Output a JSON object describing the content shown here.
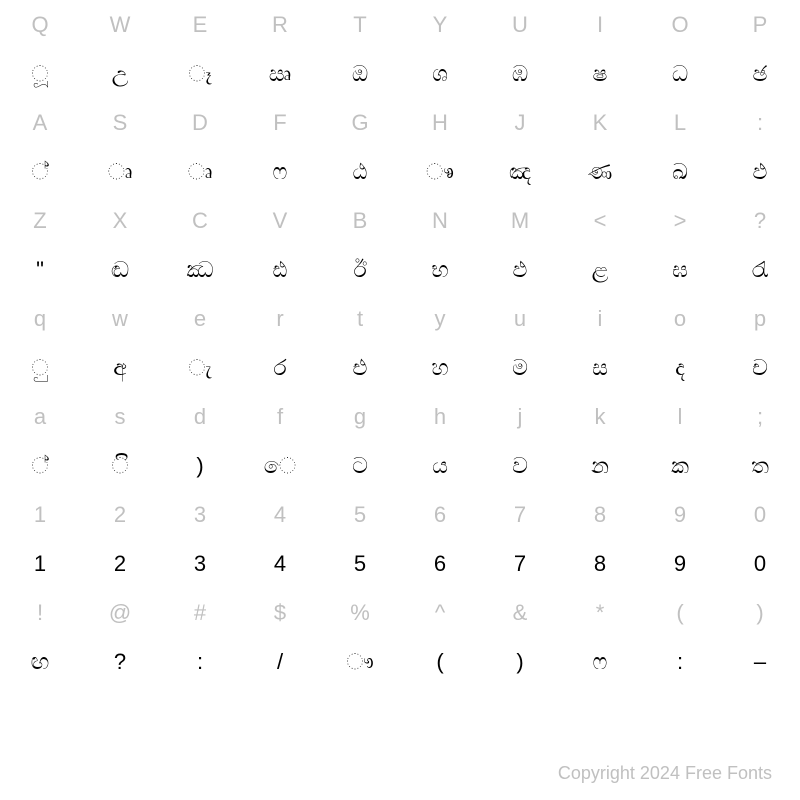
{
  "grid": {
    "columns": 10,
    "key_color": "#c0c0c0",
    "glyph_color": "#000000",
    "background_color": "#ffffff",
    "cell_fontsize": 22,
    "rows": [
      {
        "type": "key",
        "cells": [
          "Q",
          "W",
          "E",
          "R",
          "T",
          "Y",
          "U",
          "I",
          "O",
          "P"
        ]
      },
      {
        "type": "glyph",
        "cells": [
          "ූ",
          "උ",
          "ෑ",
          "ඍ",
          "ඔ",
          "ශ",
          "ඹ",
          "ෂ",
          "ධ",
          "ඡ"
        ]
      },
      {
        "type": "key",
        "cells": [
          "A",
          "S",
          "D",
          "F",
          "G",
          "H",
          "J",
          "K",
          "L",
          ":"
        ]
      },
      {
        "type": "glyph",
        "cells": [
          "්",
          "ෘ",
          "ෘ",
          "ෆ",
          "ඨ",
          "ෳ",
          "ඤ",
          "ණ",
          "ඛ",
          "ඵ"
        ]
      },
      {
        "type": "key",
        "cells": [
          "Z",
          "X",
          "C",
          "V",
          "B",
          "N",
          "M",
          "<",
          ">",
          "?"
        ]
      },
      {
        "type": "glyph",
        "cells": [
          "\"",
          "ඬ",
          "ඣ",
          "ඪ",
          "ඊ",
          "භ",
          "ඵ",
          "ළ",
          "ඝ",
          "රැ"
        ]
      },
      {
        "type": "key",
        "cells": [
          "q",
          "w",
          "e",
          "r",
          "t",
          "y",
          "u",
          "i",
          "o",
          "p"
        ]
      },
      {
        "type": "glyph",
        "cells": [
          "ු",
          "අ",
          "ැ",
          "ර",
          "එ",
          "හ",
          "ම",
          "ස",
          "ද",
          "ච"
        ]
      },
      {
        "type": "key",
        "cells": [
          "a",
          "s",
          "d",
          "f",
          "g",
          "h",
          "j",
          "k",
          "l",
          ";"
        ]
      },
      {
        "type": "glyph",
        "cells": [
          "්",
          "ි",
          ")",
          "ෙ",
          "ට",
          "ය",
          "ව",
          "න",
          "ක",
          "ත"
        ]
      },
      {
        "type": "key",
        "cells": [
          "1",
          "2",
          "3",
          "4",
          "5",
          "6",
          "7",
          "8",
          "9",
          "0"
        ]
      },
      {
        "type": "glyph",
        "cells": [
          "1",
          "2",
          "3",
          "4",
          "5",
          "6",
          "7",
          "8",
          "9",
          "0"
        ]
      },
      {
        "type": "key",
        "cells": [
          "!",
          "@",
          "#",
          "$",
          "%",
          "^",
          "&",
          "*",
          "(",
          ")"
        ]
      },
      {
        "type": "glyph",
        "cells": [
          "ඟ",
          "?",
          ":",
          "/",
          "ෟ",
          "(",
          ")",
          "ෆ",
          ":",
          "–"
        ]
      }
    ]
  },
  "footer": {
    "text": "Copyright 2024 Free Fonts",
    "color": "#c0c0c0",
    "fontsize": 18
  }
}
